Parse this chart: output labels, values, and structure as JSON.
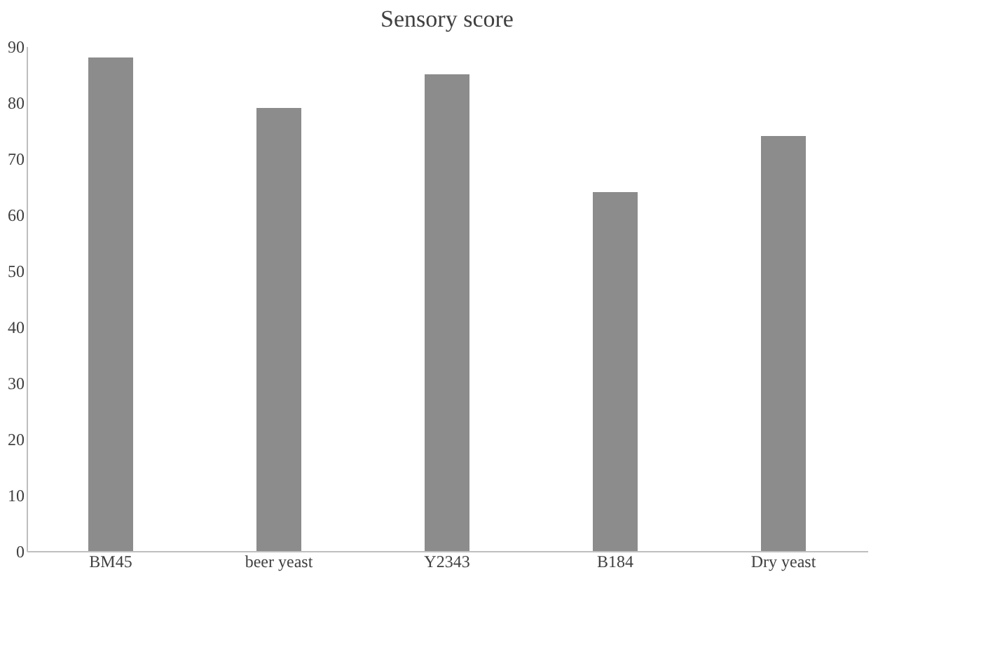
{
  "chart_data": {
    "type": "bar",
    "title": "Sensory score",
    "categories": [
      "BM45",
      "beer yeast",
      "Y2343",
      "B184",
      "Dry yeast"
    ],
    "values": [
      88,
      79,
      85,
      64,
      74
    ],
    "color": "#8c8c8c",
    "ylim": [
      0,
      90
    ],
    "yticks": [
      0,
      10,
      20,
      30,
      40,
      50,
      60,
      70,
      80,
      90
    ],
    "grid": false
  }
}
